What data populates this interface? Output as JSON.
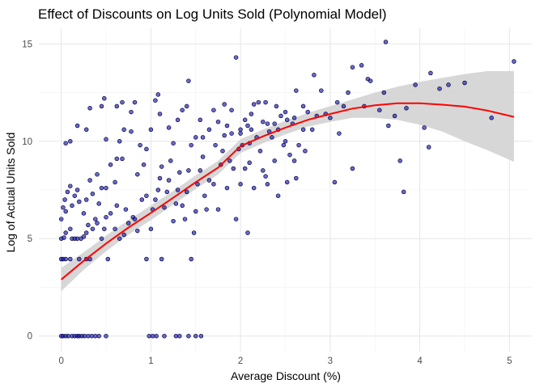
{
  "chart_data": {
    "type": "scatter",
    "title": "Effect of Discounts on Log Units Sold (Polynomial Model)",
    "xlabel": "Average Discount (%)",
    "ylabel": "Log of Actual Units Sold",
    "xlim": [
      -0.25,
      5.25
    ],
    "ylim": [
      -0.8,
      15.8
    ],
    "x_ticks": [
      0,
      1,
      2,
      3,
      4,
      5
    ],
    "y_ticks": [
      0,
      5,
      10,
      15
    ],
    "grid": true,
    "legend": "none",
    "colors": {
      "points_fill": "#1a1ab3",
      "points_stroke": "#000033",
      "fit_line": "#ff0000",
      "confidence_band": "#d3d3d3",
      "grid": "#e6e6e6"
    },
    "points": [
      [
        0.0,
        0
      ],
      [
        0.02,
        0
      ],
      [
        0.05,
        0
      ],
      [
        0.08,
        0
      ],
      [
        0.12,
        0
      ],
      [
        0.15,
        0
      ],
      [
        0.18,
        0
      ],
      [
        0.2,
        0
      ],
      [
        0.23,
        0
      ],
      [
        0.26,
        0
      ],
      [
        0.3,
        0
      ],
      [
        0.34,
        0
      ],
      [
        0.38,
        0
      ],
      [
        0.42,
        0
      ],
      [
        0.5,
        0
      ],
      [
        0.98,
        0
      ],
      [
        1.02,
        0
      ],
      [
        1.06,
        0
      ],
      [
        1.15,
        0
      ],
      [
        1.28,
        0
      ],
      [
        1.32,
        0
      ],
      [
        1.42,
        0
      ],
      [
        1.5,
        0
      ],
      [
        1.56,
        0
      ],
      [
        0.0,
        3.95
      ],
      [
        0.02,
        3.95
      ],
      [
        0.05,
        3.95
      ],
      [
        0.1,
        3.95
      ],
      [
        0.2,
        3.95
      ],
      [
        0.28,
        3.95
      ],
      [
        0.32,
        3.95
      ],
      [
        0.52,
        3.95
      ],
      [
        0.95,
        3.95
      ],
      [
        1.12,
        3.95
      ],
      [
        1.45,
        3.95
      ],
      [
        0.0,
        5.0
      ],
      [
        0.03,
        5.05
      ],
      [
        0.05,
        5.3
      ],
      [
        0.1,
        5.5
      ],
      [
        0.12,
        5.0
      ],
      [
        0.15,
        5.0
      ],
      [
        0.18,
        5.0
      ],
      [
        0.22,
        5.0
      ],
      [
        0.25,
        5.1
      ],
      [
        0.28,
        5.3
      ],
      [
        0.3,
        5.7
      ],
      [
        0.35,
        5.5
      ],
      [
        0.38,
        6.0
      ],
      [
        0.4,
        5.8
      ],
      [
        0.42,
        6.8
      ],
      [
        0.45,
        5.0
      ],
      [
        0.48,
        5.5
      ],
      [
        0.5,
        6.1
      ],
      [
        0.55,
        6.3
      ],
      [
        0.6,
        5.5
      ],
      [
        0.62,
        6.7
      ],
      [
        0.65,
        5.0
      ],
      [
        0.7,
        5.2
      ],
      [
        0.72,
        6.5
      ],
      [
        0.75,
        5.8
      ],
      [
        0.8,
        6.1
      ],
      [
        0.82,
        6.0
      ],
      [
        0.85,
        5.4
      ],
      [
        0.9,
        7.0
      ],
      [
        0.95,
        7.2
      ],
      [
        0.0,
        6.0
      ],
      [
        0.02,
        6.6
      ],
      [
        0.04,
        7.0
      ],
      [
        0.05,
        6.4
      ],
      [
        0.07,
        7.4
      ],
      [
        0.1,
        7.7
      ],
      [
        0.12,
        6.7
      ],
      [
        0.15,
        7.2
      ],
      [
        0.18,
        7.5
      ],
      [
        0.2,
        6.9
      ],
      [
        0.25,
        6.3
      ],
      [
        0.28,
        7.0
      ],
      [
        0.32,
        8.0
      ],
      [
        0.35,
        7.3
      ],
      [
        0.4,
        8.3
      ],
      [
        0.45,
        7.6
      ],
      [
        0.5,
        7.6
      ],
      [
        0.5,
        10.1
      ],
      [
        0.55,
        8.8
      ],
      [
        0.6,
        7.9
      ],
      [
        0.62,
        9.1
      ],
      [
        0.65,
        10.0
      ],
      [
        0.68,
        9.1
      ],
      [
        0.7,
        10.6
      ],
      [
        0.78,
        10.5
      ],
      [
        0.85,
        8.3
      ],
      [
        0.88,
        9.8
      ],
      [
        0.92,
        8.8
      ],
      [
        0.95,
        9.6
      ],
      [
        0.05,
        9.9
      ],
      [
        0.1,
        10.0
      ],
      [
        0.18,
        10.8
      ],
      [
        0.28,
        10.6
      ],
      [
        0.32,
        11.7
      ],
      [
        0.45,
        11.8
      ],
      [
        0.48,
        12.2
      ],
      [
        0.62,
        11.8
      ],
      [
        0.68,
        12.0
      ],
      [
        0.78,
        11.5
      ],
      [
        0.82,
        12.0
      ],
      [
        1.0,
        10.6
      ],
      [
        1.05,
        12.1
      ],
      [
        1.1,
        11.4
      ],
      [
        1.08,
        12.4
      ],
      [
        1.0,
        5.5
      ],
      [
        1.02,
        6.5
      ],
      [
        1.05,
        7.0
      ],
      [
        1.08,
        7.5
      ],
      [
        1.1,
        8.1
      ],
      [
        1.12,
        8.7
      ],
      [
        1.15,
        6.6
      ],
      [
        1.18,
        7.4
      ],
      [
        1.2,
        8.0
      ],
      [
        1.22,
        9.0
      ],
      [
        1.25,
        5.9
      ],
      [
        1.28,
        6.8
      ],
      [
        1.3,
        7.5
      ],
      [
        1.32,
        8.4
      ],
      [
        1.35,
        6.7
      ],
      [
        1.38,
        6.0
      ],
      [
        1.4,
        7.4
      ],
      [
        1.42,
        8.5
      ],
      [
        1.45,
        9.8
      ],
      [
        1.48,
        5.3
      ],
      [
        1.5,
        6.4
      ],
      [
        1.52,
        7.8
      ],
      [
        1.55,
        8.5
      ],
      [
        1.58,
        9.2
      ],
      [
        1.6,
        7.2
      ],
      [
        1.62,
        6.5
      ],
      [
        1.65,
        8.0
      ],
      [
        1.7,
        7.8
      ],
      [
        1.72,
        9.8
      ],
      [
        1.75,
        6.5
      ],
      [
        1.78,
        8.8
      ],
      [
        1.8,
        9.5
      ],
      [
        1.82,
        10.3
      ],
      [
        1.85,
        7.6
      ],
      [
        1.88,
        9.0
      ],
      [
        1.9,
        10.4
      ],
      [
        1.92,
        8.6
      ],
      [
        1.95,
        6.0
      ],
      [
        1.98,
        9.6
      ],
      [
        1.2,
        10.7
      ],
      [
        1.25,
        9.9
      ],
      [
        1.3,
        11.1
      ],
      [
        1.35,
        11.6
      ],
      [
        1.4,
        11.8
      ],
      [
        1.42,
        13.1
      ],
      [
        1.5,
        10.2
      ],
      [
        1.55,
        11.1
      ],
      [
        1.58,
        10.2
      ],
      [
        1.65,
        10.6
      ],
      [
        1.7,
        11.6
      ],
      [
        1.75,
        11.0
      ],
      [
        1.82,
        11.9
      ],
      [
        1.85,
        10.8
      ],
      [
        1.9,
        11.6
      ],
      [
        1.95,
        14.3
      ],
      [
        2.0,
        10.4
      ],
      [
        2.02,
        9.8
      ],
      [
        2.05,
        11.1
      ],
      [
        2.08,
        10.8
      ],
      [
        2.1,
        9.9
      ],
      [
        2.12,
        10.6
      ],
      [
        2.15,
        11.9
      ],
      [
        2.18,
        10.2
      ],
      [
        2.2,
        12.0
      ],
      [
        2.22,
        9.5
      ],
      [
        2.25,
        11.0
      ],
      [
        2.28,
        8.2
      ],
      [
        2.3,
        10.9
      ],
      [
        2.32,
        10.5
      ],
      [
        2.35,
        10.2
      ],
      [
        2.38,
        9.0
      ],
      [
        2.4,
        11.8
      ],
      [
        2.42,
        10.6
      ],
      [
        2.45,
        11.3
      ],
      [
        2.48,
        9.8
      ],
      [
        2.5,
        10.0
      ],
      [
        2.52,
        11.1
      ],
      [
        2.55,
        9.3
      ],
      [
        2.58,
        10.9
      ],
      [
        2.6,
        11.2
      ],
      [
        2.62,
        12.6
      ],
      [
        2.65,
        9.8
      ],
      [
        2.7,
        10.6
      ],
      [
        2.72,
        9.5
      ],
      [
        2.75,
        11.5
      ],
      [
        2.8,
        10.6
      ],
      [
        2.85,
        11.3
      ],
      [
        2.9,
        12.6
      ],
      [
        2.95,
        11.4
      ],
      [
        3.0,
        11.2
      ],
      [
        3.05,
        7.9
      ],
      [
        3.1,
        10.4
      ],
      [
        3.15,
        11.8
      ],
      [
        3.2,
        12.5
      ],
      [
        3.25,
        8.6
      ],
      [
        2.0,
        7.8
      ],
      [
        2.05,
        8.6
      ],
      [
        2.1,
        8.9
      ],
      [
        2.15,
        7.6
      ],
      [
        2.08,
        5.3
      ],
      [
        2.25,
        8.5
      ],
      [
        2.3,
        7.8
      ],
      [
        2.42,
        7.2
      ],
      [
        2.52,
        7.9
      ],
      [
        2.6,
        9.0
      ],
      [
        2.62,
        8.1
      ],
      [
        2.0,
        10.6
      ],
      [
        2.12,
        11.4
      ],
      [
        2.28,
        12.0
      ],
      [
        2.38,
        10.9
      ],
      [
        2.5,
        11.5
      ],
      [
        2.7,
        11.8
      ],
      [
        2.82,
        13.4
      ],
      [
        3.08,
        12.0
      ],
      [
        3.25,
        13.8
      ],
      [
        3.35,
        13.9
      ],
      [
        3.42,
        13.2
      ],
      [
        3.45,
        13.1
      ],
      [
        3.38,
        11.8
      ],
      [
        3.55,
        11.6
      ],
      [
        3.62,
        15.1
      ],
      [
        3.65,
        10.8
      ],
      [
        3.72,
        11.3
      ],
      [
        3.78,
        9.0
      ],
      [
        3.82,
        7.4
      ],
      [
        3.85,
        11.7
      ],
      [
        3.95,
        12.9
      ],
      [
        4.05,
        10.7
      ],
      [
        4.1,
        9.7
      ],
      [
        4.12,
        13.5
      ],
      [
        4.22,
        12.7
      ],
      [
        4.32,
        12.9
      ],
      [
        4.5,
        13.0
      ],
      [
        4.8,
        11.2
      ],
      [
        5.05,
        14.1
      ],
      [
        3.6,
        12.5
      ]
    ],
    "fit": [
      [
        0.0,
        2.9
      ],
      [
        0.25,
        3.86
      ],
      [
        0.5,
        4.75
      ],
      [
        0.75,
        5.57
      ],
      [
        1.0,
        6.32
      ],
      [
        1.25,
        7.1
      ],
      [
        1.5,
        7.9
      ],
      [
        1.75,
        8.65
      ],
      [
        2.0,
        9.75
      ],
      [
        2.25,
        10.25
      ],
      [
        2.5,
        10.7
      ],
      [
        2.75,
        11.1
      ],
      [
        3.0,
        11.4
      ],
      [
        3.25,
        11.68
      ],
      [
        3.5,
        11.85
      ],
      [
        3.75,
        11.95
      ],
      [
        4.0,
        11.95
      ],
      [
        4.25,
        11.88
      ],
      [
        4.5,
        11.78
      ],
      [
        4.75,
        11.58
      ],
      [
        5.05,
        11.25
      ]
    ],
    "band": [
      [
        0.0,
        2.3,
        3.5
      ],
      [
        0.25,
        3.4,
        4.3
      ],
      [
        0.5,
        4.35,
        5.15
      ],
      [
        0.75,
        5.2,
        5.95
      ],
      [
        1.0,
        5.95,
        6.7
      ],
      [
        1.25,
        6.75,
        7.45
      ],
      [
        1.5,
        7.55,
        8.25
      ],
      [
        1.75,
        8.3,
        9.0
      ],
      [
        2.0,
        9.4,
        10.1
      ],
      [
        2.25,
        9.9,
        10.6
      ],
      [
        2.5,
        10.35,
        11.05
      ],
      [
        2.75,
        10.75,
        11.45
      ],
      [
        3.0,
        11.0,
        11.8
      ],
      [
        3.25,
        11.2,
        12.15
      ],
      [
        3.5,
        11.2,
        12.5
      ],
      [
        3.75,
        11.1,
        12.8
      ],
      [
        4.0,
        10.85,
        13.05
      ],
      [
        4.25,
        10.5,
        13.25
      ],
      [
        4.5,
        10.0,
        13.45
      ],
      [
        4.75,
        9.55,
        13.6
      ],
      [
        5.05,
        8.95,
        13.6
      ]
    ]
  }
}
